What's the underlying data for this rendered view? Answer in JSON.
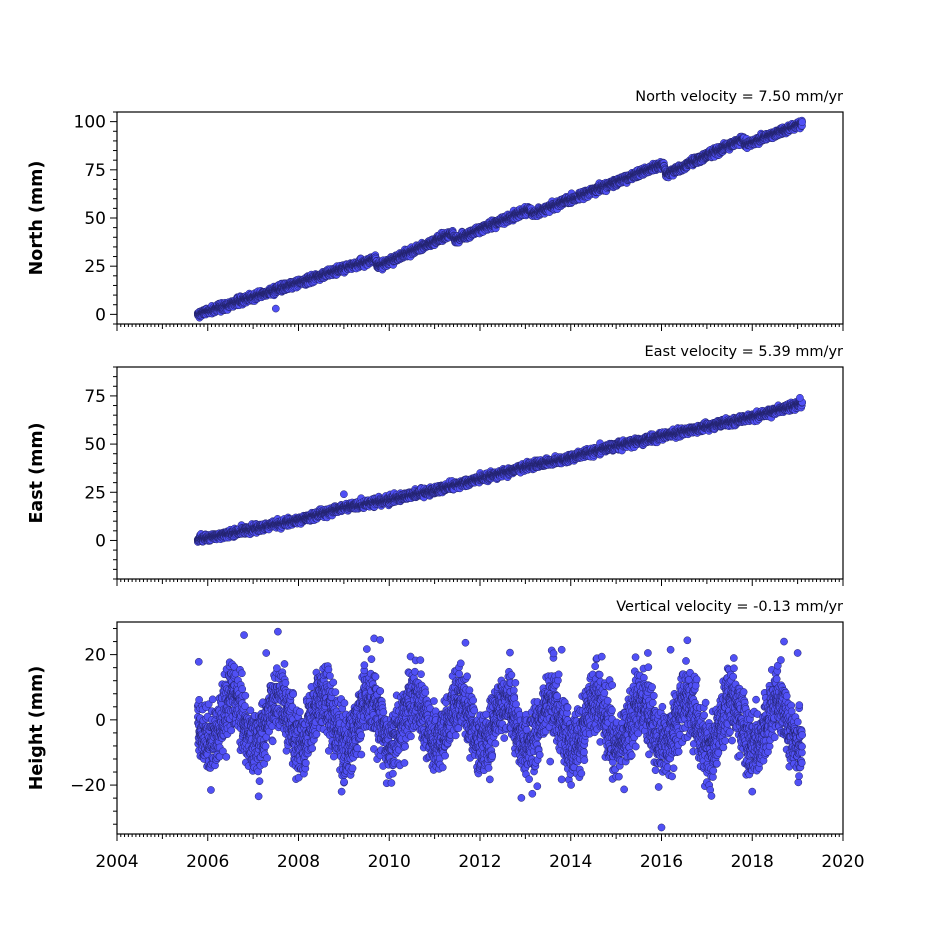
{
  "chart_data": [
    {
      "type": "scatter",
      "title": "North velocity = 7.50 mm/yr",
      "ylabel": "North (mm)",
      "xlim": [
        2004,
        2020
      ],
      "ylim": [
        -5,
        105
      ],
      "yticks": [
        0,
        25,
        50,
        75,
        100
      ],
      "xticks": [
        2004,
        2006,
        2008,
        2010,
        2012,
        2014,
        2016,
        2018,
        2020
      ],
      "show_xtick_labels": false,
      "grid": false,
      "velocity": 7.5,
      "start": 2005.78,
      "end": 2019.1,
      "noise": 0.9,
      "segments": [
        {
          "x": 2005.78,
          "y": 0
        },
        {
          "x": 2009.7,
          "y": 29
        },
        {
          "x": 2009.75,
          "y": 25
        },
        {
          "x": 2011.4,
          "y": 42
        },
        {
          "x": 2011.45,
          "y": 38.5
        },
        {
          "x": 2013.1,
          "y": 54.5
        },
        {
          "x": 2013.15,
          "y": 52
        },
        {
          "x": 2016.05,
          "y": 78
        },
        {
          "x": 2016.1,
          "y": 72.5
        },
        {
          "x": 2017.8,
          "y": 91
        },
        {
          "x": 2017.85,
          "y": 88
        },
        {
          "x": 2019.1,
          "y": 99
        }
      ],
      "outliers": [
        {
          "x": 2007.5,
          "y": 3
        }
      ],
      "sample_points": [
        [
          2006.0,
          0
        ],
        [
          2008.0,
          16
        ],
        [
          2010.0,
          27
        ],
        [
          2012.0,
          44
        ],
        [
          2014.0,
          58
        ],
        [
          2016.0,
          77
        ],
        [
          2018.0,
          89
        ],
        [
          2019.0,
          98
        ]
      ]
    },
    {
      "type": "scatter",
      "title": "East velocity = 5.39 mm/yr",
      "ylabel": "East (mm)",
      "xlim": [
        2004,
        2020
      ],
      "ylim": [
        -20,
        90
      ],
      "yticks": [
        0,
        25,
        50,
        75
      ],
      "xticks": [
        2004,
        2006,
        2008,
        2010,
        2012,
        2014,
        2016,
        2018,
        2020
      ],
      "show_xtick_labels": false,
      "grid": false,
      "velocity": 5.39,
      "start": 2005.78,
      "end": 2019.1,
      "noise": 0.9,
      "segments": [
        {
          "x": 2005.78,
          "y": 0.5
        },
        {
          "x": 2007.0,
          "y": 6
        },
        {
          "x": 2008.0,
          "y": 10.5
        },
        {
          "x": 2009.0,
          "y": 17
        },
        {
          "x": 2010.0,
          "y": 21
        },
        {
          "x": 2011.0,
          "y": 26
        },
        {
          "x": 2012.0,
          "y": 32
        },
        {
          "x": 2013.0,
          "y": 38
        },
        {
          "x": 2014.0,
          "y": 43
        },
        {
          "x": 2015.0,
          "y": 49
        },
        {
          "x": 2016.0,
          "y": 54
        },
        {
          "x": 2017.0,
          "y": 59
        },
        {
          "x": 2018.0,
          "y": 64
        },
        {
          "x": 2019.1,
          "y": 71
        }
      ],
      "outliers": [
        {
          "x": 2009.0,
          "y": 24
        },
        {
          "x": 2019.05,
          "y": 74
        }
      ],
      "sample_points": [
        [
          2006.0,
          1
        ],
        [
          2008.0,
          10
        ],
        [
          2010.0,
          21
        ],
        [
          2012.0,
          32
        ],
        [
          2014.0,
          43
        ],
        [
          2016.0,
          54
        ],
        [
          2018.0,
          64
        ],
        [
          2019.0,
          70
        ]
      ]
    },
    {
      "type": "scatter",
      "title": "Vertical velocity = -0.13 mm/yr",
      "ylabel": "Height (mm)",
      "xlabel": "",
      "xlim": [
        2004,
        2020
      ],
      "ylim": [
        -35,
        30
      ],
      "yticks": [
        -20,
        0,
        20
      ],
      "ytick_labels": [
        "−20",
        "0",
        "20"
      ],
      "xticks": [
        2004,
        2006,
        2008,
        2010,
        2012,
        2014,
        2016,
        2018,
        2020
      ],
      "xtick_labels": [
        "2004",
        "2006",
        "2008",
        "2010",
        "2012",
        "2014",
        "2016",
        "2018",
        "2020"
      ],
      "show_xtick_labels": true,
      "grid": false,
      "velocity": -0.13,
      "start": 2005.78,
      "end": 2019.1,
      "seasonal_amplitude": 7,
      "noise": 5,
      "outliers": [
        {
          "x": 2006.8,
          "y": 26
        },
        {
          "x": 2009.8,
          "y": 24.5
        },
        {
          "x": 2018.7,
          "y": 24
        },
        {
          "x": 2016.0,
          "y": -33
        },
        {
          "x": 2008.95,
          "y": -22
        },
        {
          "x": 2018.0,
          "y": -22
        },
        {
          "x": 2013.8,
          "y": 21.5
        },
        {
          "x": 2016.2,
          "y": 21.5
        },
        {
          "x": 2015.7,
          "y": 20.5
        },
        {
          "x": 2019.0,
          "y": 20.5
        }
      ],
      "sample_points": [
        [
          2006.0,
          3
        ],
        [
          2007.0,
          -5
        ],
        [
          2008.0,
          5
        ],
        [
          2010.0,
          -2
        ],
        [
          2012.0,
          4
        ],
        [
          2014.0,
          -3
        ],
        [
          2016.0,
          6
        ],
        [
          2018.0,
          -4
        ]
      ]
    }
  ]
}
